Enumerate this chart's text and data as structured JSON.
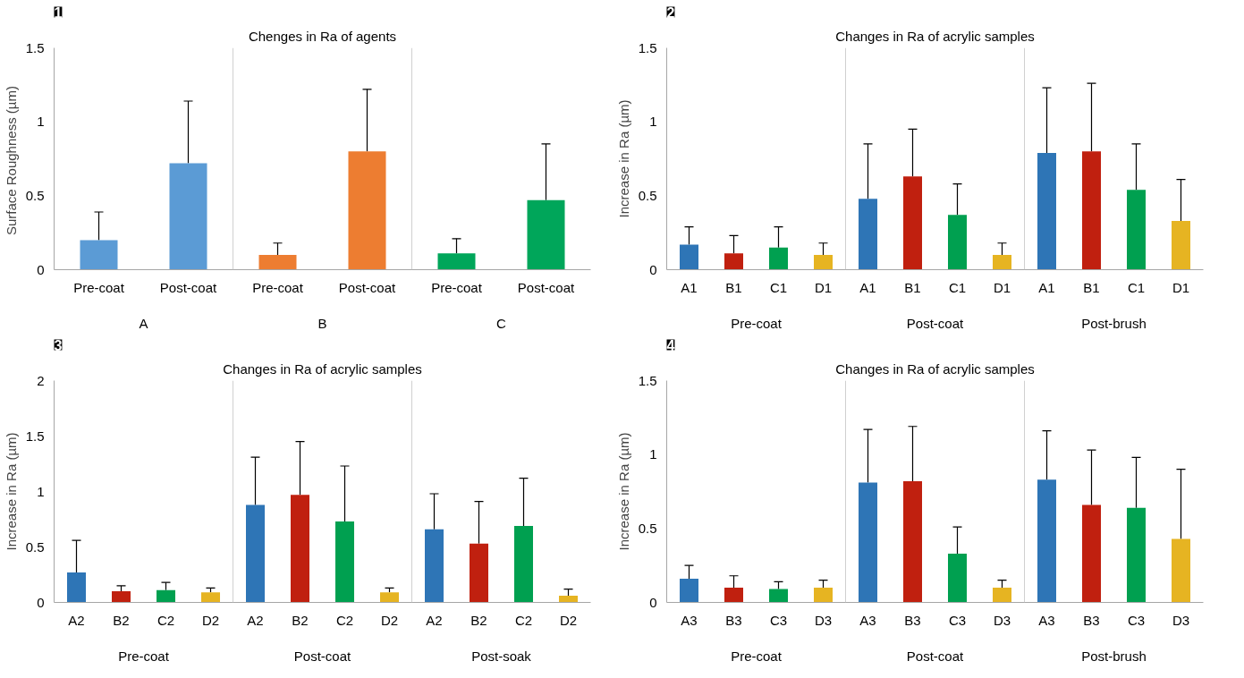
{
  "chart_data": [
    {
      "type": "bar",
      "title": "Chenges in Ra of agents",
      "ylabel": "Surface  Roughness (µm)",
      "annotations": [
        "1",
        "A",
        "B",
        "C"
      ],
      "categories": [
        "Pre-coat",
        "Post-coat",
        "Pre-coat",
        "Post-coat",
        "Pre-coat",
        "Post-coat"
      ],
      "values": [
        0.2,
        0.72,
        0.1,
        0.8,
        0.11,
        0.47
      ],
      "colors": [
        "#5b9bd5",
        "#5b9bd5",
        "#ed7d31",
        "#ed7d31",
        "#00a65a",
        "#00a65a"
      ],
      "errors": [
        [
          0.2,
          0.39
        ],
        [
          0.72,
          1.14
        ],
        [
          0.1,
          0.18
        ],
        [
          0.8,
          1.22
        ],
        [
          0.11,
          0.21
        ],
        [
          0.47,
          0.85
        ]
      ],
      "ylim": [
        0,
        1.5
      ],
      "yticks": [
        0,
        0.5,
        1,
        1.5
      ]
    },
    {
      "type": "bar",
      "title": "Changes in Ra of acrylic samples",
      "ylabel": "Increase in Ra (µm)",
      "annotations": [
        "2",
        "Pre-coat",
        "Post-coat",
        "Post-brush"
      ],
      "categories": [
        "A1",
        "B1",
        "C1",
        "D1",
        "A1",
        "B1",
        "C1",
        "D1",
        "A1",
        "B1",
        "C1",
        "D1"
      ],
      "values": [
        0.17,
        0.11,
        0.15,
        0.1,
        0.48,
        0.63,
        0.37,
        0.1,
        0.79,
        0.8,
        0.54,
        0.33
      ],
      "colors": [
        "#2e75b6",
        "#c0200f",
        "#00a050",
        "#e6b422",
        "#2e75b6",
        "#c0200f",
        "#00a050",
        "#e6b422",
        "#2e75b6",
        "#c0200f",
        "#00a050",
        "#e6b422"
      ],
      "errors": [
        [
          0.17,
          0.29
        ],
        [
          0.11,
          0.23
        ],
        [
          0.15,
          0.29
        ],
        [
          0.1,
          0.18
        ],
        [
          0.48,
          0.85
        ],
        [
          0.63,
          0.95
        ],
        [
          0.37,
          0.58
        ],
        [
          0.1,
          0.18
        ],
        [
          0.79,
          1.23
        ],
        [
          0.8,
          1.26
        ],
        [
          0.54,
          0.85
        ],
        [
          0.33,
          0.61
        ]
      ],
      "ylim": [
        0,
        1.5
      ],
      "yticks": [
        0,
        0.5,
        1,
        1.5
      ]
    },
    {
      "type": "bar",
      "title": "Changes in Ra of acrylic samples",
      "ylabel": "Increase in Ra (µm)",
      "annotations": [
        "3",
        "Pre-coat",
        "Post-coat",
        "Post-soak"
      ],
      "categories": [
        "A2",
        "B2",
        "C2",
        "D2",
        "A2",
        "B2",
        "C2",
        "D2",
        "A2",
        "B2",
        "C2",
        "D2"
      ],
      "values": [
        0.27,
        0.1,
        0.11,
        0.09,
        0.88,
        0.97,
        0.73,
        0.09,
        0.66,
        0.53,
        0.69,
        0.06
      ],
      "colors": [
        "#2e75b6",
        "#c0200f",
        "#00a050",
        "#e6b422",
        "#2e75b6",
        "#c0200f",
        "#00a050",
        "#e6b422",
        "#2e75b6",
        "#c0200f",
        "#00a050",
        "#e6b422"
      ],
      "errors": [
        [
          0.27,
          0.56
        ],
        [
          0.1,
          0.15
        ],
        [
          0.11,
          0.18
        ],
        [
          0.09,
          0.13
        ],
        [
          0.88,
          1.31
        ],
        [
          0.97,
          1.45
        ],
        [
          0.73,
          1.23
        ],
        [
          0.09,
          0.13
        ],
        [
          0.66,
          0.98
        ],
        [
          0.53,
          0.91
        ],
        [
          0.69,
          1.12
        ],
        [
          0.06,
          0.12
        ]
      ],
      "ylim": [
        0,
        2
      ],
      "yticks": [
        0,
        0.5,
        1,
        1.5,
        2
      ]
    },
    {
      "type": "bar",
      "title": "Changes in Ra of acrylic samples",
      "ylabel": "Increase in Ra (µm)",
      "annotations": [
        "4",
        "Pre-coat",
        "Post-coat",
        "Post-brush"
      ],
      "categories": [
        "A3",
        "B3",
        "C3",
        "D3",
        "A3",
        "B3",
        "C3",
        "D3",
        "A3",
        "B3",
        "C3",
        "D3"
      ],
      "values": [
        0.16,
        0.1,
        0.09,
        0.1,
        0.81,
        0.82,
        0.33,
        0.1,
        0.83,
        0.66,
        0.64,
        0.43
      ],
      "colors": [
        "#2e75b6",
        "#c0200f",
        "#00a050",
        "#e6b422",
        "#2e75b6",
        "#c0200f",
        "#00a050",
        "#e6b422",
        "#2e75b6",
        "#c0200f",
        "#00a050",
        "#e6b422"
      ],
      "errors": [
        [
          0.16,
          0.25
        ],
        [
          0.1,
          0.18
        ],
        [
          0.09,
          0.14
        ],
        [
          0.1,
          0.15
        ],
        [
          0.81,
          1.17
        ],
        [
          0.82,
          1.19
        ],
        [
          0.33,
          0.51
        ],
        [
          0.1,
          0.15
        ],
        [
          0.83,
          1.16
        ],
        [
          0.66,
          1.03
        ],
        [
          0.64,
          0.98
        ],
        [
          0.43,
          0.9
        ]
      ],
      "ylim": [
        0,
        1.5
      ],
      "yticks": [
        0,
        0.5,
        1,
        1.5
      ]
    }
  ]
}
